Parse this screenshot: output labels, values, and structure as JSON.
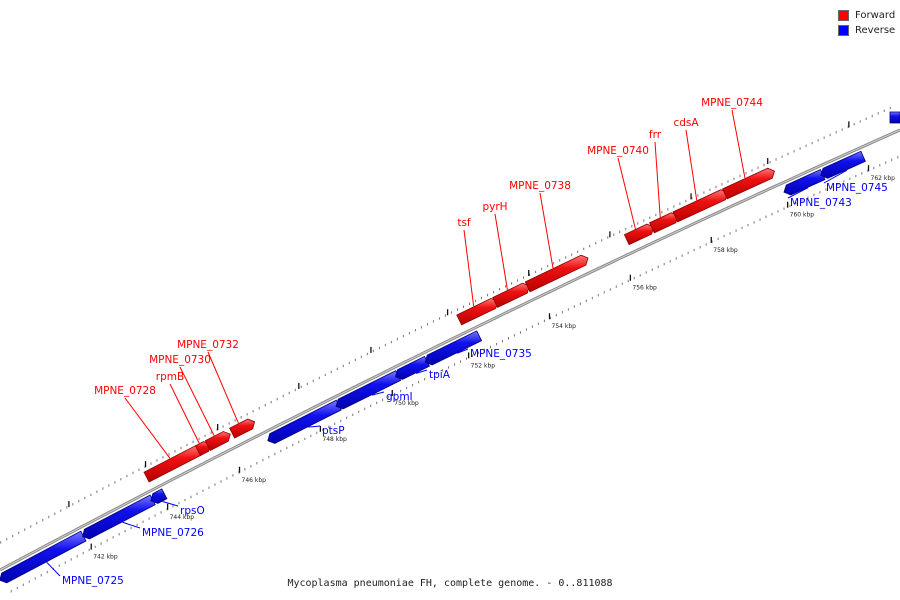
{
  "legend": {
    "items": [
      {
        "label": "Forward",
        "color": "#ff0000"
      },
      {
        "label": "Reverse",
        "color": "#0000ff"
      }
    ]
  },
  "caption": "Mycoplasma pneumoniae FH, complete genome. - 0..811088",
  "track": {
    "tick_labels": [
      "742 kbp",
      "744 kbp",
      "746 kbp",
      "748 kbp",
      "750 kbp",
      "752 kbp",
      "754 kbp",
      "756 kbp",
      "758 kbp",
      "760 kbp",
      "762 kbp"
    ]
  },
  "genes": [
    {
      "label": "MPNE_0725",
      "strand": "reverse"
    },
    {
      "label": "MPNE_0726",
      "strand": "reverse"
    },
    {
      "label": "rpsO",
      "strand": "reverse"
    },
    {
      "label": "MPNE_0728",
      "strand": "forward"
    },
    {
      "label": "rpmB",
      "strand": "forward"
    },
    {
      "label": "MPNE_0730",
      "strand": "forward"
    },
    {
      "label": "MPNE_0732",
      "strand": "forward"
    },
    {
      "label": "ptsP",
      "strand": "reverse"
    },
    {
      "label": "gpmI",
      "strand": "reverse"
    },
    {
      "label": "tpiA",
      "strand": "reverse"
    },
    {
      "label": "MPNE_0735",
      "strand": "reverse"
    },
    {
      "label": "tsf",
      "strand": "forward"
    },
    {
      "label": "pyrH",
      "strand": "forward"
    },
    {
      "label": "MPNE_0738",
      "strand": "forward"
    },
    {
      "label": "MPNE_0740",
      "strand": "forward"
    },
    {
      "label": "frr",
      "strand": "forward"
    },
    {
      "label": "cdsA",
      "strand": "forward"
    },
    {
      "label": "MPNE_0744",
      "strand": "forward"
    },
    {
      "label": "MPNE_0743",
      "strand": "reverse"
    },
    {
      "label": "MPNE_0745",
      "strand": "reverse"
    }
  ]
}
